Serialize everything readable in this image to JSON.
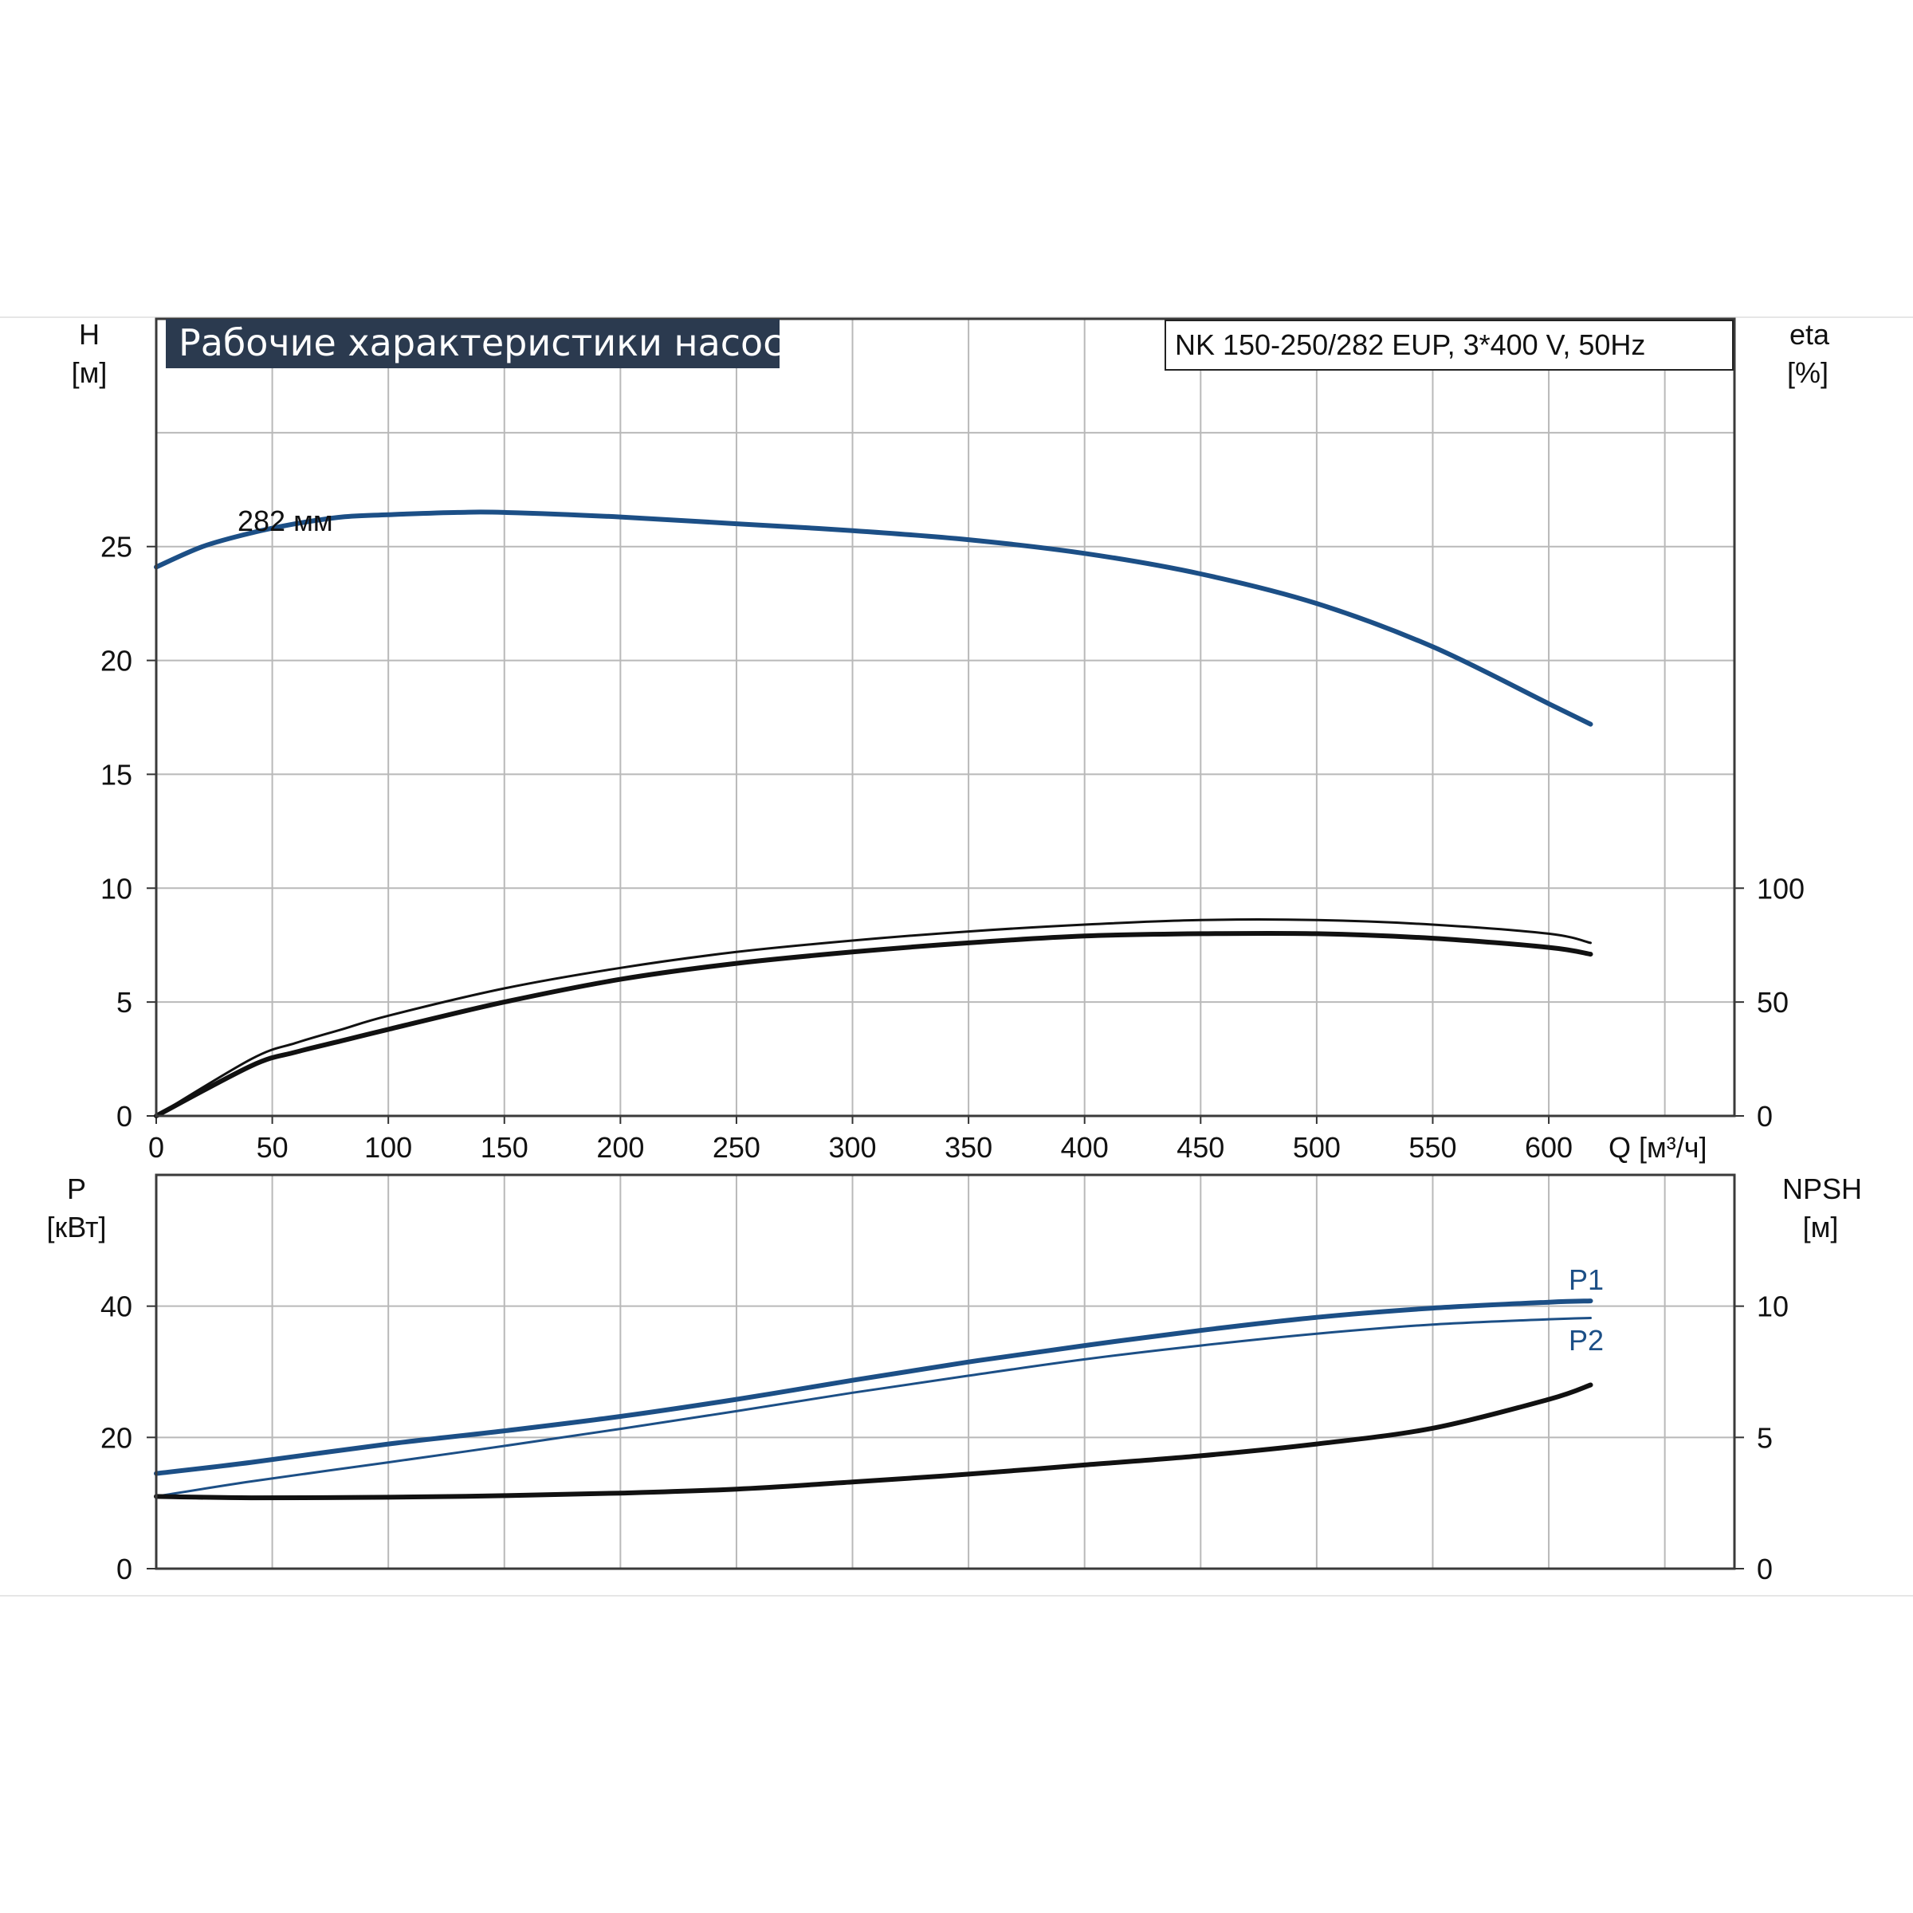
{
  "colors": {
    "blue": "#1c4f86",
    "black": "#111111",
    "title_bg": "#2b3a4f",
    "grid": "#b9b9b9"
  },
  "chart_data": [
    {
      "type": "line",
      "title": "Рабочие характеристики насоса",
      "model": "NK 150-250/282 EUP, 3*400 V, 50Hz",
      "xlabel": "Q [м³/ч]",
      "xlim": [
        0,
        680
      ],
      "x_ticks": [
        "0",
        "50",
        "100",
        "150",
        "200",
        "250",
        "300",
        "350",
        "400",
        "450",
        "500",
        "550",
        "600"
      ],
      "y_left": {
        "label_top": "H",
        "label_unit": "[м]",
        "lim": [
          0,
          35
        ],
        "ticks": [
          "0",
          "5",
          "10",
          "15",
          "20",
          "25"
        ]
      },
      "y_right": {
        "label_top": "eta",
        "label_unit": "[%]",
        "lim": [
          0,
          350
        ],
        "ticks": [
          "0",
          "50",
          "100"
        ]
      },
      "grid": true,
      "annotation": "282 мм",
      "series": [
        {
          "name": "",
          "axis": "left",
          "color": "blue",
          "x": [
            0,
            20,
            41,
            60,
            80,
            100,
            130,
            150,
            200,
            250,
            300,
            350,
            400,
            450,
            500,
            550,
            600,
            618
          ],
          "y": [
            24.1,
            25.0,
            25.6,
            26.0,
            26.3,
            26.4,
            26.5,
            26.5,
            26.3,
            26.0,
            25.7,
            25.3,
            24.7,
            23.8,
            22.5,
            20.6,
            18.1,
            17.2
          ]
        },
        {
          "name": "",
          "axis": "right",
          "color": "black",
          "x": [
            0,
            41,
            60,
            80,
            100,
            150,
            200,
            250,
            300,
            350,
            400,
            450,
            500,
            550,
            600,
            618
          ],
          "y": [
            0,
            22,
            28,
            33,
            38,
            50,
            60,
            67,
            72,
            76,
            79,
            80,
            80,
            78,
            74,
            71
          ]
        },
        {
          "name": "",
          "axis": "right",
          "color": "black",
          "thin": true,
          "x": [
            0,
            41,
            60,
            80,
            100,
            150,
            200,
            250,
            300,
            350,
            400,
            450,
            500,
            550,
            600,
            618
          ],
          "y": [
            0,
            25,
            32,
            38,
            44,
            56,
            65,
            72,
            77,
            81,
            84,
            86,
            86,
            84,
            80,
            76
          ]
        }
      ]
    },
    {
      "type": "line",
      "xlim": [
        0,
        680
      ],
      "y_left": {
        "label_top": "P",
        "label_unit": "[кВт]",
        "lim": [
          0,
          60
        ],
        "ticks": [
          "0",
          "20",
          "40"
        ]
      },
      "y_right": {
        "label_top": "NPSH",
        "label_unit": "[м]",
        "lim": [
          0,
          15
        ],
        "ticks": [
          "0",
          "5",
          "10"
        ]
      },
      "grid": true,
      "series": [
        {
          "name": "P1",
          "axis": "left",
          "color": "blue",
          "x": [
            0,
            41,
            100,
            150,
            200,
            250,
            300,
            350,
            400,
            450,
            500,
            550,
            600,
            618
          ],
          "y": [
            14.5,
            16.2,
            19.0,
            21.0,
            23.2,
            25.8,
            28.7,
            31.5,
            34.0,
            36.3,
            38.3,
            39.7,
            40.6,
            40.8
          ]
        },
        {
          "name": "P2",
          "axis": "left",
          "color": "blue",
          "thin": true,
          "x": [
            0,
            41,
            100,
            150,
            200,
            250,
            300,
            350,
            400,
            450,
            500,
            550,
            600,
            618
          ],
          "y": [
            11.0,
            13.3,
            16.2,
            18.7,
            21.3,
            24.0,
            26.8,
            29.4,
            31.9,
            34.0,
            35.8,
            37.2,
            38.0,
            38.2
          ]
        },
        {
          "name": "",
          "axis": "right",
          "color": "black",
          "x": [
            0,
            41,
            100,
            150,
            200,
            250,
            300,
            350,
            400,
            450,
            500,
            550,
            600,
            618
          ],
          "y": [
            2.75,
            2.7,
            2.72,
            2.78,
            2.88,
            3.03,
            3.3,
            3.6,
            3.95,
            4.3,
            4.75,
            5.35,
            6.45,
            7.0
          ]
        }
      ]
    }
  ]
}
